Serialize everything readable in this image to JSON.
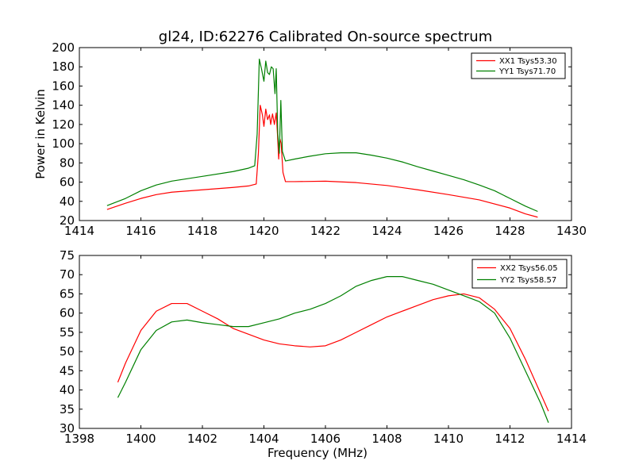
{
  "title": "gl24, ID:62276 Calibrated On-source spectrum",
  "chart_data": [
    {
      "type": "line",
      "xlabel": "",
      "ylabel": "Power in Kelvin",
      "xlim": [
        1414,
        1430
      ],
      "ylim": [
        20,
        200
      ],
      "xticks": [
        1414,
        1416,
        1418,
        1420,
        1422,
        1424,
        1426,
        1428,
        1430
      ],
      "yticks": [
        20,
        40,
        60,
        80,
        100,
        120,
        140,
        160,
        180,
        200
      ],
      "grid": false,
      "legend_position": "top-right",
      "series": [
        {
          "name": "XX1 Tsys53.30",
          "color": "#ff0000",
          "points": [
            [
              1414.9,
              31.5
            ],
            [
              1415.5,
              38
            ],
            [
              1416,
              43
            ],
            [
              1416.5,
              47
            ],
            [
              1417,
              49.5
            ],
            [
              1418,
              52
            ],
            [
              1419,
              54.5
            ],
            [
              1419.5,
              56
            ],
            [
              1419.75,
              58
            ],
            [
              1419.82,
              90
            ],
            [
              1419.88,
              140
            ],
            [
              1419.95,
              130
            ],
            [
              1420.0,
              118
            ],
            [
              1420.06,
              136
            ],
            [
              1420.12,
              125
            ],
            [
              1420.18,
              130
            ],
            [
              1420.22,
              120
            ],
            [
              1420.28,
              131
            ],
            [
              1420.34,
              120
            ],
            [
              1420.4,
              132
            ],
            [
              1420.44,
              110
            ],
            [
              1420.48,
              84
            ],
            [
              1420.52,
              105
            ],
            [
              1420.56,
              100
            ],
            [
              1420.62,
              70
            ],
            [
              1420.7,
              60.5
            ],
            [
              1421,
              60.5
            ],
            [
              1422,
              61
            ],
            [
              1423,
              59.5
            ],
            [
              1424,
              56.5
            ],
            [
              1425,
              52
            ],
            [
              1426,
              47
            ],
            [
              1427,
              41.5
            ],
            [
              1428,
              33
            ],
            [
              1428.5,
              27
            ],
            [
              1428.9,
              23.5
            ]
          ]
        },
        {
          "name": "YY1 Tsys71.70",
          "color": "#008000",
          "points": [
            [
              1414.9,
              35.5
            ],
            [
              1415.5,
              43
            ],
            [
              1416,
              51
            ],
            [
              1416.5,
              57
            ],
            [
              1417,
              61
            ],
            [
              1418,
              66
            ],
            [
              1419,
              71
            ],
            [
              1419.5,
              74.5
            ],
            [
              1419.7,
              77
            ],
            [
              1419.78,
              110
            ],
            [
              1419.85,
              188
            ],
            [
              1419.92,
              178
            ],
            [
              1420.0,
              165
            ],
            [
              1420.06,
              186
            ],
            [
              1420.12,
              174
            ],
            [
              1420.18,
              172
            ],
            [
              1420.24,
              180
            ],
            [
              1420.3,
              178
            ],
            [
              1420.36,
              152
            ],
            [
              1420.4,
              178
            ],
            [
              1420.45,
              110
            ],
            [
              1420.5,
              90
            ],
            [
              1420.55,
              145
            ],
            [
              1420.6,
              92
            ],
            [
              1420.7,
              82
            ],
            [
              1421,
              84
            ],
            [
              1421.5,
              87
            ],
            [
              1422,
              89.5
            ],
            [
              1422.5,
              90.5
            ],
            [
              1423,
              90.5
            ],
            [
              1423.5,
              88
            ],
            [
              1424,
              85
            ],
            [
              1424.5,
              81
            ],
            [
              1425,
              76
            ],
            [
              1425.5,
              71.5
            ],
            [
              1426,
              67
            ],
            [
              1426.5,
              62.5
            ],
            [
              1427,
              57
            ],
            [
              1427.5,
              51
            ],
            [
              1428,
              43
            ],
            [
              1428.5,
              35
            ],
            [
              1428.9,
              29.5
            ]
          ]
        }
      ]
    },
    {
      "type": "line",
      "xlabel": "Frequency (MHz)",
      "ylabel": "",
      "xlim": [
        1398,
        1414
      ],
      "ylim": [
        30,
        75
      ],
      "xticks": [
        1398,
        1400,
        1402,
        1404,
        1406,
        1408,
        1410,
        1412,
        1414
      ],
      "yticks": [
        30,
        35,
        40,
        45,
        50,
        55,
        60,
        65,
        70,
        75
      ],
      "grid": false,
      "legend_position": "top-right",
      "series": [
        {
          "name": "XX2 Tsys56.05",
          "color": "#ff0000",
          "points": [
            [
              1399.25,
              42
            ],
            [
              1399.5,
              47
            ],
            [
              1400,
              55.5
            ],
            [
              1400.5,
              60.5
            ],
            [
              1401,
              62.5
            ],
            [
              1401.5,
              62.5
            ],
            [
              1402,
              60.5
            ],
            [
              1402.5,
              58.5
            ],
            [
              1403,
              56
            ],
            [
              1403.5,
              54.5
            ],
            [
              1404,
              53
            ],
            [
              1404.5,
              52
            ],
            [
              1405,
              51.5
            ],
            [
              1405.5,
              51.2
            ],
            [
              1406,
              51.5
            ],
            [
              1406.5,
              53
            ],
            [
              1407,
              55
            ],
            [
              1407.5,
              57
            ],
            [
              1408,
              59
            ],
            [
              1408.5,
              60.5
            ],
            [
              1409,
              62
            ],
            [
              1409.5,
              63.5
            ],
            [
              1410,
              64.5
            ],
            [
              1410.5,
              65
            ],
            [
              1411,
              64
            ],
            [
              1411.5,
              61
            ],
            [
              1412,
              56
            ],
            [
              1412.5,
              48
            ],
            [
              1413,
              39
            ],
            [
              1413.25,
              34.5
            ]
          ]
        },
        {
          "name": "YY2 Tsys58.57",
          "color": "#008000",
          "points": [
            [
              1399.25,
              38
            ],
            [
              1399.5,
              42
            ],
            [
              1400,
              50.5
            ],
            [
              1400.5,
              55.5
            ],
            [
              1401,
              57.7
            ],
            [
              1401.5,
              58.2
            ],
            [
              1402,
              57.5
            ],
            [
              1402.5,
              57
            ],
            [
              1403,
              56.5
            ],
            [
              1403.5,
              56.5
            ],
            [
              1404,
              57.5
            ],
            [
              1404.5,
              58.5
            ],
            [
              1405,
              60
            ],
            [
              1405.5,
              61
            ],
            [
              1406,
              62.5
            ],
            [
              1406.5,
              64.5
            ],
            [
              1407,
              67
            ],
            [
              1407.5,
              68.5
            ],
            [
              1408,
              69.5
            ],
            [
              1408.5,
              69.5
            ],
            [
              1409,
              68.5
            ],
            [
              1409.5,
              67.5
            ],
            [
              1410,
              66
            ],
            [
              1410.5,
              64.5
            ],
            [
              1411,
              63
            ],
            [
              1411.5,
              60
            ],
            [
              1412,
              53.5
            ],
            [
              1412.5,
              45
            ],
            [
              1413,
              36.5
            ],
            [
              1413.25,
              31.5
            ]
          ]
        }
      ]
    }
  ]
}
